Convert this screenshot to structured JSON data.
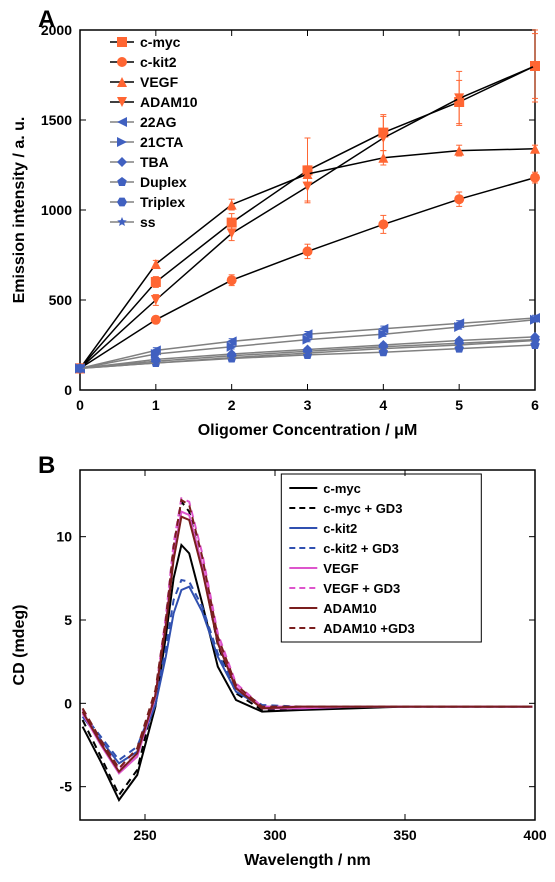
{
  "panelA": {
    "label": "A",
    "type": "scatter-line",
    "title": "",
    "xlabel": "Oligomer Concentration / μM",
    "ylabel": "Emission intensity / a. u.",
    "label_fontsize": 16,
    "tick_fontsize": 14,
    "xlim": [
      0,
      6
    ],
    "ylim": [
      0,
      2000
    ],
    "xtick_step": 1,
    "ytick_step": 500,
    "background_color": "#ffffff",
    "axis_color": "#000000",
    "series": [
      {
        "name": "c-myc",
        "marker": "square",
        "color": "#ff6633",
        "line_color": "#000000",
        "x": [
          0,
          1,
          2,
          3,
          4,
          5,
          6
        ],
        "y": [
          120,
          600,
          930,
          1220,
          1430,
          1600,
          1800
        ],
        "err": [
          0,
          30,
          50,
          180,
          100,
          120,
          200
        ]
      },
      {
        "name": "c-kit2",
        "marker": "circle",
        "color": "#ff6633",
        "line_color": "#000000",
        "x": [
          0,
          1,
          2,
          3,
          4,
          5,
          6
        ],
        "y": [
          120,
          390,
          610,
          770,
          920,
          1060,
          1180
        ],
        "err": [
          0,
          20,
          30,
          40,
          50,
          40,
          30
        ]
      },
      {
        "name": "VEGF",
        "marker": "triangle-up",
        "color": "#ff6633",
        "line_color": "#000000",
        "x": [
          0,
          1,
          2,
          3,
          4,
          5,
          6
        ],
        "y": [
          120,
          700,
          1030,
          1200,
          1290,
          1330,
          1340
        ],
        "err": [
          0,
          20,
          30,
          45,
          40,
          30,
          20
        ]
      },
      {
        "name": "ADAM10",
        "marker": "triangle-down",
        "color": "#ff6633",
        "line_color": "#000000",
        "x": [
          0,
          1,
          2,
          3,
          4,
          5,
          6
        ],
        "y": [
          120,
          500,
          870,
          1130,
          1400,
          1620,
          1800
        ],
        "err": [
          0,
          30,
          40,
          80,
          120,
          150,
          180
        ]
      },
      {
        "name": "22AG",
        "marker": "triangle-left",
        "color": "#4060c0",
        "line_color": "#808080",
        "x": [
          0,
          1,
          2,
          3,
          4,
          5,
          6
        ],
        "y": [
          120,
          220,
          270,
          310,
          340,
          370,
          400
        ],
        "err": [
          0,
          15,
          15,
          15,
          15,
          15,
          15
        ]
      },
      {
        "name": "21CTA",
        "marker": "triangle-right",
        "color": "#4060c0",
        "line_color": "#808080",
        "x": [
          0,
          1,
          2,
          3,
          4,
          5,
          6
        ],
        "y": [
          120,
          200,
          240,
          280,
          310,
          350,
          390
        ],
        "err": [
          0,
          10,
          12,
          12,
          12,
          12,
          12
        ]
      },
      {
        "name": "TBA",
        "marker": "diamond",
        "color": "#4060c0",
        "line_color": "#808080",
        "x": [
          0,
          1,
          2,
          3,
          4,
          5,
          6
        ],
        "y": [
          120,
          170,
          200,
          225,
          250,
          275,
          295
        ],
        "err": [
          0,
          10,
          10,
          10,
          10,
          10,
          10
        ]
      },
      {
        "name": "Duplex",
        "marker": "pentagon",
        "color": "#4060c0",
        "line_color": "#808080",
        "x": [
          0,
          1,
          2,
          3,
          4,
          5,
          6
        ],
        "y": [
          120,
          150,
          175,
          195,
          210,
          230,
          250
        ],
        "err": [
          0,
          8,
          8,
          8,
          8,
          8,
          8
        ]
      },
      {
        "name": "Triplex",
        "marker": "hexagon",
        "color": "#4060c0",
        "line_color": "#808080",
        "x": [
          0,
          1,
          2,
          3,
          4,
          5,
          6
        ],
        "y": [
          120,
          160,
          190,
          215,
          240,
          260,
          280
        ],
        "err": [
          0,
          10,
          10,
          10,
          10,
          10,
          10
        ]
      },
      {
        "name": "ss",
        "marker": "star",
        "color": "#4060c0",
        "line_color": "#808080",
        "x": [
          0,
          1,
          2,
          3,
          4,
          5,
          6
        ],
        "y": [
          120,
          150,
          180,
          205,
          230,
          250,
          275
        ],
        "err": [
          0,
          8,
          8,
          8,
          8,
          8,
          8
        ]
      }
    ]
  },
  "panelB": {
    "label": "B",
    "type": "line",
    "xlabel": "Wavelength / nm",
    "ylabel": "CD (mdeg)",
    "label_fontsize": 16,
    "tick_fontsize": 14,
    "xlim": [
      225,
      400
    ],
    "ylim": [
      -7,
      14
    ],
    "xticks": [
      250,
      300,
      350,
      400
    ],
    "yticks": [
      -5,
      0,
      5,
      10
    ],
    "background_color": "#ffffff",
    "axis_color": "#000000",
    "legend_box": true,
    "series": [
      {
        "name": "c-myc",
        "color": "#000000",
        "dash": "solid",
        "width": 2,
        "x": [
          226,
          233,
          240,
          247,
          254,
          258,
          261,
          264,
          267,
          272,
          278,
          285,
          295,
          310,
          330,
          350,
          370,
          390,
          399
        ],
        "y": [
          -1.4,
          -3.5,
          -5.8,
          -4.3,
          -0.2,
          4.0,
          7.5,
          9.5,
          9.0,
          6.0,
          2.2,
          0.2,
          -0.5,
          -0.4,
          -0.3,
          -0.2,
          -0.2,
          -0.2,
          -0.2
        ]
      },
      {
        "name": "c-myc + GD3",
        "color": "#000000",
        "dash": "dash",
        "width": 2,
        "x": [
          226,
          233,
          240,
          247,
          254,
          258,
          261,
          264,
          267,
          272,
          278,
          285,
          295,
          310,
          330,
          350,
          370,
          390,
          399
        ],
        "y": [
          -1.0,
          -3.2,
          -5.5,
          -4.0,
          0.5,
          5.0,
          9.5,
          12.1,
          11.5,
          8.2,
          3.5,
          0.6,
          -0.4,
          -0.3,
          -0.2,
          -0.2,
          -0.2,
          -0.2,
          -0.2
        ]
      },
      {
        "name": "c-kit2",
        "color": "#3050b0",
        "dash": "solid",
        "width": 2,
        "x": [
          226,
          233,
          240,
          247,
          254,
          258,
          261,
          264,
          267,
          272,
          278,
          285,
          295,
          310,
          330,
          350,
          370,
          390,
          399
        ],
        "y": [
          -0.8,
          -2.2,
          -3.6,
          -2.9,
          -0.1,
          2.8,
          5.4,
          6.8,
          7.0,
          5.5,
          2.8,
          0.7,
          -0.2,
          -0.3,
          -0.2,
          -0.2,
          -0.2,
          -0.2,
          -0.2
        ]
      },
      {
        "name": "c-kit2 + GD3",
        "color": "#3050b0",
        "dash": "dash",
        "width": 2,
        "x": [
          226,
          233,
          240,
          247,
          254,
          258,
          261,
          264,
          267,
          272,
          278,
          285,
          295,
          310,
          330,
          350,
          370,
          390,
          399
        ],
        "y": [
          -0.6,
          -2.0,
          -3.4,
          -2.6,
          0.2,
          3.3,
          6.2,
          7.4,
          7.3,
          5.8,
          3.0,
          0.9,
          -0.1,
          -0.2,
          -0.2,
          -0.2,
          -0.2,
          -0.2,
          -0.2
        ]
      },
      {
        "name": "VEGF",
        "color": "#dd55cc",
        "dash": "solid",
        "width": 2,
        "x": [
          226,
          233,
          240,
          247,
          254,
          258,
          261,
          264,
          267,
          272,
          278,
          285,
          295,
          310,
          330,
          350,
          370,
          390,
          399
        ],
        "y": [
          -0.6,
          -2.5,
          -4.2,
          -3.2,
          0.4,
          4.8,
          9.0,
          11.5,
          11.3,
          8.3,
          3.8,
          1.0,
          -0.3,
          -0.3,
          -0.2,
          -0.2,
          -0.2,
          -0.2,
          -0.2
        ]
      },
      {
        "name": "VEGF + GD3",
        "color": "#dd55cc",
        "dash": "dash",
        "width": 2,
        "x": [
          226,
          233,
          240,
          247,
          254,
          258,
          261,
          264,
          267,
          272,
          278,
          285,
          295,
          310,
          330,
          350,
          370,
          390,
          399
        ],
        "y": [
          -0.4,
          -2.3,
          -4.0,
          -3.0,
          0.6,
          5.2,
          9.6,
          12.3,
          12.1,
          9.0,
          4.2,
          1.2,
          -0.2,
          -0.2,
          -0.2,
          -0.2,
          -0.2,
          -0.2,
          -0.2
        ]
      },
      {
        "name": "ADAM10",
        "color": "#7a1e1e",
        "dash": "solid",
        "width": 2,
        "x": [
          226,
          233,
          240,
          247,
          254,
          258,
          261,
          264,
          267,
          272,
          278,
          285,
          295,
          310,
          330,
          350,
          370,
          390,
          399
        ],
        "y": [
          -0.5,
          -2.4,
          -4.1,
          -3.0,
          0.5,
          4.6,
          8.6,
          11.2,
          11.0,
          8.0,
          3.6,
          0.9,
          -0.3,
          -0.2,
          -0.2,
          -0.2,
          -0.2,
          -0.2,
          -0.2
        ]
      },
      {
        "name": "ADAM10 +GD3",
        "color": "#7a1e1e",
        "dash": "dash",
        "width": 2,
        "x": [
          226,
          233,
          240,
          247,
          254,
          258,
          261,
          264,
          267,
          272,
          278,
          285,
          295,
          310,
          330,
          350,
          370,
          390,
          399
        ],
        "y": [
          -0.3,
          -2.2,
          -3.9,
          -2.7,
          0.8,
          5.0,
          9.4,
          12.2,
          11.9,
          8.8,
          4.0,
          1.1,
          -0.2,
          -0.2,
          -0.2,
          -0.2,
          -0.2,
          -0.2,
          -0.2
        ]
      }
    ]
  }
}
